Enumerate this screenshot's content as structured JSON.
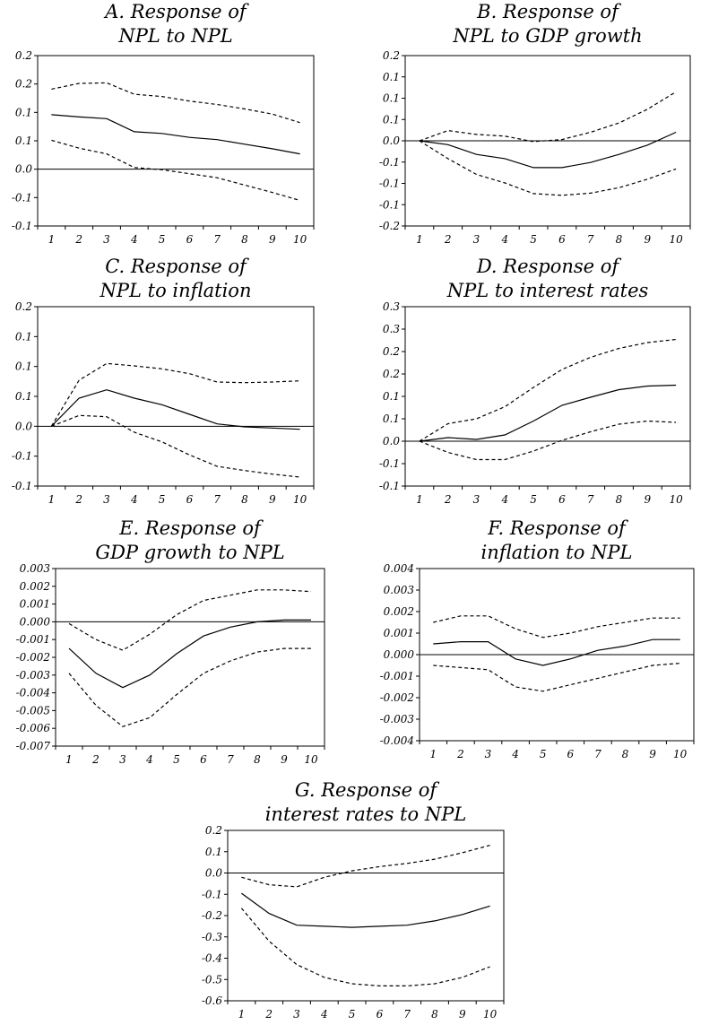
{
  "chart_data": [
    {
      "type": "line",
      "title_lines": [
        "A. Response of",
        "NPL to NPL"
      ],
      "x": [
        1,
        2,
        3,
        4,
        5,
        6,
        7,
        8,
        9,
        10
      ],
      "xticks": [
        "1",
        "2",
        "3",
        "4",
        "5",
        "6",
        "7",
        "8",
        "9",
        "10"
      ],
      "ylim": [
        -0.1,
        0.2
      ],
      "yticks": [
        -0.1,
        -0.05,
        0.0,
        0.05,
        0.1,
        0.15,
        0.2
      ],
      "ytick_labels": [
        "-0.1",
        "-0.1",
        "0.0",
        "0.1",
        "0.1",
        "0.2",
        "0.2"
      ],
      "zero_line": true,
      "series": [
        {
          "style": "dashed",
          "values": [
            0.141,
            0.151,
            0.152,
            0.132,
            0.128,
            0.12,
            0.114,
            0.106,
            0.097,
            0.082
          ]
        },
        {
          "style": "solid",
          "values": [
            0.096,
            0.092,
            0.089,
            0.066,
            0.063,
            0.056,
            0.052,
            0.044,
            0.036,
            0.027
          ]
        },
        {
          "style": "dashed",
          "values": [
            0.051,
            0.037,
            0.027,
            0.003,
            -0.001,
            -0.008,
            -0.015,
            -0.028,
            -0.041,
            -0.055
          ]
        }
      ]
    },
    {
      "type": "line",
      "title_lines": [
        "B. Response of",
        "NPL to GDP growth"
      ],
      "x": [
        1,
        2,
        3,
        4,
        5,
        6,
        7,
        8,
        9,
        10
      ],
      "xticks": [
        "1",
        "2",
        "3",
        "4",
        "5",
        "6",
        "7",
        "8",
        "9",
        "10"
      ],
      "ylim": [
        -0.2,
        0.2
      ],
      "yticks": [
        -0.2,
        -0.15,
        -0.1,
        -0.05,
        0.0,
        0.05,
        0.1,
        0.15,
        0.2
      ],
      "ytick_labels": [
        "-0.2",
        "-0.1",
        "-0.1",
        "-0.1",
        "0.0",
        "0.1",
        "0.1",
        "0.1",
        "0.2"
      ],
      "zero_line": true,
      "series": [
        {
          "style": "dashed",
          "values": [
            0.0,
            0.024,
            0.015,
            0.011,
            -0.002,
            0.003,
            0.02,
            0.042,
            0.074,
            0.115
          ]
        },
        {
          "style": "solid",
          "values": [
            0.0,
            -0.009,
            -0.032,
            -0.042,
            -0.063,
            -0.063,
            -0.051,
            -0.032,
            -0.01,
            0.02
          ]
        },
        {
          "style": "dashed",
          "values": [
            0.0,
            -0.042,
            -0.079,
            -0.099,
            -0.124,
            -0.128,
            -0.123,
            -0.11,
            -0.09,
            -0.066
          ]
        }
      ]
    },
    {
      "type": "line",
      "title_lines": [
        "C. Response of",
        "NPL to inflation"
      ],
      "x": [
        1,
        2,
        3,
        4,
        5,
        6,
        7,
        8,
        9,
        10
      ],
      "xticks": [
        "1",
        "2",
        "3",
        "4",
        "5",
        "6",
        "7",
        "8",
        "9",
        "10"
      ],
      "ylim": [
        -0.1,
        0.2
      ],
      "yticks": [
        -0.1,
        -0.05,
        0.0,
        0.05,
        0.1,
        0.15,
        0.2
      ],
      "ytick_labels": [
        "-0.1",
        "-0.1",
        "0.0",
        "0.1",
        "0.1",
        "0.1",
        "0.2"
      ],
      "zero_line": true,
      "series": [
        {
          "style": "dashed",
          "values": [
            0.0,
            0.077,
            0.105,
            0.101,
            0.096,
            0.088,
            0.074,
            0.073,
            0.074,
            0.076
          ]
        },
        {
          "style": "solid",
          "values": [
            0.0,
            0.047,
            0.061,
            0.047,
            0.036,
            0.02,
            0.004,
            -0.001,
            -0.003,
            -0.005
          ]
        },
        {
          "style": "dashed",
          "values": [
            0.0,
            0.018,
            0.016,
            -0.01,
            -0.026,
            -0.048,
            -0.067,
            -0.074,
            -0.08,
            -0.085
          ]
        }
      ]
    },
    {
      "type": "line",
      "title_lines": [
        "D. Response of",
        "NPL to interest rates"
      ],
      "x": [
        1,
        2,
        3,
        4,
        5,
        6,
        7,
        8,
        9,
        10
      ],
      "xticks": [
        "1",
        "2",
        "3",
        "4",
        "5",
        "6",
        "7",
        "8",
        "9",
        "10"
      ],
      "ylim": [
        -0.1,
        0.3
      ],
      "yticks": [
        -0.1,
        -0.05,
        0.0,
        0.05,
        0.1,
        0.15,
        0.2,
        0.25,
        0.3
      ],
      "ytick_labels": [
        "-0.1",
        "-0.1",
        "0.0",
        "0.1",
        "0.1",
        "0.2",
        "0.2",
        "0.3",
        "0.3"
      ],
      "zero_line": true,
      "series": [
        {
          "style": "dashed",
          "values": [
            0.0,
            0.039,
            0.05,
            0.077,
            0.12,
            0.16,
            0.187,
            0.207,
            0.22,
            0.227
          ]
        },
        {
          "style": "solid",
          "values": [
            0.0,
            0.008,
            0.004,
            0.014,
            0.045,
            0.08,
            0.098,
            0.115,
            0.123,
            0.125
          ]
        },
        {
          "style": "dashed",
          "values": [
            0.0,
            -0.025,
            -0.041,
            -0.041,
            -0.022,
            0.002,
            0.021,
            0.038,
            0.045,
            0.042
          ]
        }
      ]
    },
    {
      "type": "line",
      "title_lines": [
        "E. Response of",
        "GDP growth to NPL"
      ],
      "x": [
        1,
        2,
        3,
        4,
        5,
        6,
        7,
        8,
        9,
        10
      ],
      "xticks": [
        "1",
        "2",
        "3",
        "4",
        "5",
        "6",
        "7",
        "8",
        "9",
        "10"
      ],
      "ylim": [
        -0.007,
        0.003
      ],
      "yticks": [
        -0.007,
        -0.006,
        -0.005,
        -0.004,
        -0.003,
        -0.002,
        -0.001,
        0.0,
        0.001,
        0.002,
        0.003
      ],
      "ytick_labels": [
        "-0.007",
        "-0.006",
        "-0.005",
        "-0.004",
        "-0.003",
        "-0.002",
        "-0.001",
        "0.000",
        "0.001",
        "0.002",
        "0.003"
      ],
      "zero_line": true,
      "series": [
        {
          "style": "dashed",
          "values": [
            -0.0001,
            -0.001,
            -0.0016,
            -0.0007,
            0.0004,
            0.0012,
            0.0015,
            0.0018,
            0.0018,
            0.0017
          ]
        },
        {
          "style": "solid",
          "values": [
            -0.0015,
            -0.0029,
            -0.0037,
            -0.003,
            -0.0018,
            -0.0008,
            -0.0003,
            0.0,
            0.0001,
            0.0001
          ]
        },
        {
          "style": "dashed",
          "values": [
            -0.0029,
            -0.0047,
            -0.0059,
            -0.0054,
            -0.0041,
            -0.0029,
            -0.0022,
            -0.0017,
            -0.0015,
            -0.0015
          ]
        }
      ]
    },
    {
      "type": "line",
      "title_lines": [
        "F. Response of",
        "inflation to NPL"
      ],
      "x": [
        1,
        2,
        3,
        4,
        5,
        6,
        7,
        8,
        9,
        10
      ],
      "xticks": [
        "1",
        "2",
        "3",
        "4",
        "5",
        "6",
        "7",
        "8",
        "9",
        "10"
      ],
      "ylim": [
        -0.004,
        0.004
      ],
      "yticks": [
        -0.004,
        -0.003,
        -0.002,
        -0.001,
        0.0,
        0.001,
        0.002,
        0.003,
        0.004
      ],
      "ytick_labels": [
        "-0.004",
        "-0.003",
        "-0.002",
        "-0.001",
        "0.000",
        "0.001",
        "0.002",
        "0.003",
        "0.004"
      ],
      "zero_line": true,
      "series": [
        {
          "style": "dashed",
          "values": [
            0.0015,
            0.0018,
            0.0018,
            0.0012,
            0.0008,
            0.001,
            0.0013,
            0.0015,
            0.0017,
            0.0017
          ]
        },
        {
          "style": "solid",
          "values": [
            0.0005,
            0.0006,
            0.0006,
            -0.0002,
            -0.0005,
            -0.0002,
            0.0002,
            0.0004,
            0.0007,
            0.0007
          ]
        },
        {
          "style": "dashed",
          "values": [
            -0.0005,
            -0.0006,
            -0.0007,
            -0.0015,
            -0.0017,
            -0.0014,
            -0.0011,
            -0.0008,
            -0.0005,
            -0.0004
          ]
        }
      ]
    },
    {
      "type": "line",
      "title_lines": [
        "G. Response of",
        "interest rates to NPL"
      ],
      "x": [
        1,
        2,
        3,
        4,
        5,
        6,
        7,
        8,
        9,
        10
      ],
      "xticks": [
        "1",
        "2",
        "3",
        "4",
        "5",
        "6",
        "7",
        "8",
        "9",
        "10"
      ],
      "ylim": [
        -0.6,
        0.2
      ],
      "yticks": [
        -0.6,
        -0.5,
        -0.4,
        -0.3,
        -0.2,
        -0.1,
        0.0,
        0.1,
        0.2
      ],
      "ytick_labels": [
        "-0.6",
        "-0.5",
        "-0.4",
        "-0.3",
        "-0.2",
        "-0.1",
        "0.0",
        "0.1",
        "0.2"
      ],
      "zero_line": true,
      "series": [
        {
          "style": "dashed",
          "values": [
            -0.02,
            -0.055,
            -0.065,
            -0.02,
            0.01,
            0.03,
            0.045,
            0.065,
            0.095,
            0.13
          ]
        },
        {
          "style": "solid",
          "values": [
            -0.095,
            -0.19,
            -0.245,
            -0.25,
            -0.255,
            -0.25,
            -0.245,
            -0.225,
            -0.195,
            -0.155
          ]
        },
        {
          "style": "dashed",
          "values": [
            -0.165,
            -0.32,
            -0.43,
            -0.49,
            -0.52,
            -0.53,
            -0.53,
            -0.52,
            -0.49,
            -0.44
          ]
        }
      ]
    }
  ]
}
